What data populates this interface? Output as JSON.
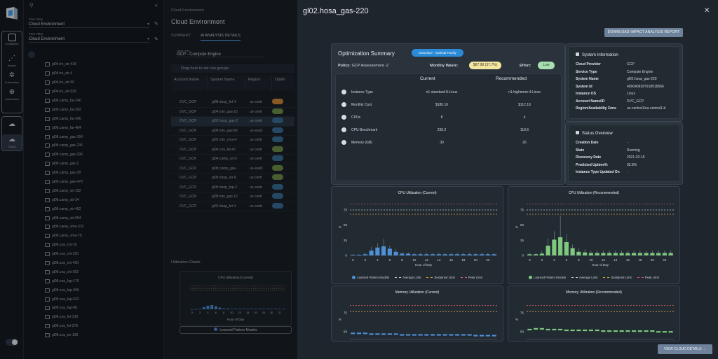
{
  "rail": {
    "items": [
      {
        "label": "Containers",
        "icon": "containers-icon"
      },
      {
        "label": "Nodes",
        "icon": "nodes-icon"
      },
      {
        "label": "Automation",
        "icon": "automation-icon"
      },
      {
        "label": "Connection",
        "icon": "connection-icon"
      }
    ],
    "cloud_label": "Cloud"
  },
  "tree": {
    "tree_view_label": "Tree View",
    "tree_view_value": "Cloud Environment",
    "tree_filter_label": "Tree Filter",
    "tree_filter_value": "Cloud Environment",
    "items": [
      "gl04.trc_str-418",
      "gl04.trc_str-4",
      "gl04.trc_str-50",
      "gl04.trc_str-536",
      "gl08.camp_far-240",
      "gl08.camp_far-202",
      "gl08.camp_far-396",
      "gl08.camp_far-404",
      "gl08.camp_gas-164",
      "gl08.camp_gas-236",
      "gl08.camp_gas-296",
      "gl08.camp_gas-2",
      "gl08.camp_gas-38",
      "gl08.camp_gas-470",
      "gl08.camp_str-152",
      "gl08.camp_str-34",
      "gl08.camp_str-452",
      "gl08.camp_str-594",
      "gl08.camp_vma-310",
      "gl08.camp_vma-70",
      "gl08.coa_chi-18",
      "gl08.coa_chi-230",
      "gl08.coa_chi-420",
      "gl08.coa_chi-562",
      "gl08.coa_fap-170",
      "gl08.coa_fap-456",
      "gl08.coa_fap-532",
      "gl08.coa_fap-98",
      "gl08.coa_fel-138",
      "gl08.coa_fel-378",
      "gl08.coa_str-108"
    ]
  },
  "main": {
    "breadcrumb": "Cloud Environment",
    "title": "Cloud Environment",
    "tabs": [
      "SUMMARY",
      "AI ANALYSIS DETAILS"
    ],
    "table_view_label": "Table View",
    "table_view_value": "GCP - Compute Engine",
    "drag_hint": "Drag here to set row groups",
    "columns": [
      "Account Name",
      "System Name",
      "Region",
      "Optim"
    ],
    "rows": [
      {
        "account": "DVC_GCP",
        "system": "gl08.doop_fel-4",
        "region": "us-centr",
        "pill": "#d08a3a"
      },
      {
        "account": "DVC_GCP",
        "system": "gl04.min_gas-15",
        "region": "us-centr",
        "pill": "#6f8f4a"
      },
      {
        "account": "DVC_GCP",
        "system": "gl02.hosa_gas-2",
        "region": "us-centr",
        "pill": "#3a6f9a"
      },
      {
        "account": "DVC_GCP",
        "system": "gl08.min_gas-66",
        "region": "us-east1",
        "pill": "#3a6f9a"
      },
      {
        "account": "DVC_GCP",
        "system": "gl02.min_vma-4",
        "region": "us-centr",
        "pill": "#3a6f9a"
      },
      {
        "account": "DVC_GCP",
        "system": "gl04.coa_fel-47",
        "region": "us-centr",
        "pill": "#6f8f4a"
      },
      {
        "account": "DVC_GCP",
        "system": "gl04.camp_str-5",
        "region": "us-centr",
        "pill": "#3a6f9a"
      },
      {
        "account": "DVC_GCP",
        "system": "gl08.camp_gas-",
        "region": "us-east1",
        "pill": "#6f8f4a"
      },
      {
        "account": "DVC_GCP",
        "system": "gl08.doop_str-8",
        "region": "us-centr",
        "pill": "#6f8f4a"
      },
      {
        "account": "DVC_GCP",
        "system": "gl08.doop_fap-2",
        "region": "us-centr",
        "pill": "#3a6f9a"
      },
      {
        "account": "DVC_GCP",
        "system": "gl08.min_gas-12",
        "region": "us-centr",
        "pill": "#3a6f9a"
      },
      {
        "account": "DVC_GCP",
        "system": "gl02.doop_fel-4",
        "region": "us-centr",
        "pill": "#3a6f9a"
      }
    ],
    "util_header": "Utilization Charts",
    "mini_chart_title": "CPU Utilization (Current)",
    "mini_chart_xlabel": "Hour of Day",
    "mini_button": "Learned Pattern Models"
  },
  "drawer": {
    "title": "gl02.hosa_gas-220",
    "report_button": "DOWNLOAD IMPACT ANALYSIS REPORT",
    "opt": {
      "title": "Optimization Summary",
      "badge": "Downsize - Optimal Family",
      "policy_label": "Policy:",
      "policy_value": "GCP Assessement -2",
      "waste_label": "Monthly Waste:",
      "waste_value": "$67.98 (37.7%)",
      "effort_label": "Effort:",
      "effort_value": "Low",
      "current": "Current",
      "recommended": "Recommended",
      "rows": [
        {
          "label": "Instance Type",
          "current": "n1-standard-8-Linux",
          "recommended": "n1-highmem-4-Linux"
        },
        {
          "label": "Monthly Cost",
          "current": "$180.16",
          "recommended": "$112.18"
        },
        {
          "label": "CPUs",
          "current": "8",
          "recommended": "4"
        },
        {
          "label": "CPU Benchmark",
          "current": "239.2",
          "recommended": "119.6"
        },
        {
          "label": "Memory (GB)",
          "current": "30",
          "recommended": "26"
        }
      ]
    },
    "sysinfo": {
      "title": "System Information",
      "rows": [
        {
          "k": "Cloud Provider",
          "v": "GCP"
        },
        {
          "k": "Service Type",
          "v": "Compute Engine"
        },
        {
          "k": "System Name",
          "v": "gl02.hosa_gas-220"
        },
        {
          "k": "System Id",
          "v": "4090409287918918566"
        },
        {
          "k": "Instance OS",
          "v": "Linux"
        },
        {
          "k": "Account Name/ID",
          "v": "DVC_GCP"
        },
        {
          "k": "Region/Availability Zone",
          "v": "us-central1/us-central1-b"
        }
      ]
    },
    "status": {
      "title": "Status Overview",
      "rows": [
        {
          "k": "Creation Date",
          "v": "-"
        },
        {
          "k": "State",
          "v": "Running"
        },
        {
          "k": "Discovery Date",
          "v": "2021-02-15"
        },
        {
          "k": "Predicted Uptime%",
          "v": "92.8%"
        },
        {
          "k": "Instance Type Updated On",
          "v": "-"
        }
      ]
    },
    "view_button": "VIEW CLOUD DETAILS"
  },
  "chart_data": [
    {
      "type": "bar",
      "title": "CPU Utilization (Current)",
      "xlabel": "Hour of Day",
      "ylabel": "%",
      "ylim": [
        0,
        90
      ],
      "yticks": [
        0,
        25,
        50,
        75
      ],
      "xticks": [
        0,
        2,
        4,
        6,
        8,
        10,
        12,
        14,
        16,
        18,
        20,
        22
      ],
      "color": "#4f8fd6",
      "values": [
        1,
        1,
        2,
        8,
        13,
        15,
        11,
        6,
        3,
        3,
        2,
        2,
        2,
        2,
        2,
        2,
        2,
        2,
        2,
        2,
        2,
        2,
        2,
        2
      ],
      "whisker_high": [
        2,
        2,
        4,
        14,
        20,
        27,
        16,
        10,
        6,
        5,
        4,
        4,
        4,
        4,
        4,
        4,
        4,
        4,
        4,
        4,
        4,
        4,
        4,
        4
      ],
      "limits": {
        "average": 75,
        "sustained": 68,
        "peak": 85
      },
      "legend": [
        "Learned Pattern Models",
        "Average Limit",
        "Sustained Limit",
        "Peak Limit"
      ]
    },
    {
      "type": "bar",
      "title": "CPU Utilization (Recommended)",
      "xlabel": "Hour of Day",
      "ylabel": "%",
      "ylim": [
        0,
        90
      ],
      "yticks": [
        0,
        25,
        50,
        75
      ],
      "xticks": [
        0,
        2,
        4,
        6,
        8,
        10,
        12,
        14,
        16,
        18,
        20,
        22
      ],
      "color": "#7fc97f",
      "values": [
        2,
        2,
        3,
        16,
        26,
        30,
        22,
        12,
        6,
        5,
        4,
        4,
        4,
        4,
        4,
        4,
        4,
        4,
        4,
        4,
        4,
        4,
        4,
        4
      ],
      "whisker_high": [
        4,
        4,
        8,
        28,
        40,
        65,
        35,
        18,
        12,
        10,
        8,
        8,
        8,
        8,
        8,
        8,
        8,
        8,
        8,
        8,
        8,
        8,
        8,
        8
      ],
      "limits": {
        "average": 75,
        "sustained": 68,
        "peak": 85
      },
      "legend": [
        "Learned Pattern Models",
        "Average Limit",
        "Sustained Limit",
        "Peak Limit"
      ]
    },
    {
      "type": "bar",
      "title": "Memory Utilization (Current)",
      "ylabel": "%",
      "ylim": [
        40,
        90
      ],
      "yticks": [
        50,
        75
      ],
      "color": "#4f8fd6",
      "values": [
        49,
        49,
        49,
        48,
        48,
        48,
        48,
        48,
        47,
        47,
        47,
        47,
        47,
        47,
        47,
        47,
        47,
        47,
        47,
        47,
        46,
        46,
        46,
        46
      ],
      "limits": {
        "average": 77,
        "sustained": 77,
        "peak": 85
      }
    },
    {
      "type": "bar",
      "title": "Memory Utilization (Recommended)",
      "ylabel": "%",
      "ylim": [
        40,
        90
      ],
      "yticks": [
        50,
        75
      ],
      "color": "#7fc97f",
      "values": [
        54,
        55,
        55,
        54,
        54,
        54,
        53,
        53,
        53,
        53,
        53,
        53,
        52,
        52,
        52,
        52,
        52,
        52,
        52,
        52,
        52,
        51,
        51,
        51
      ],
      "limits": {
        "average": 77,
        "sustained": 77,
        "peak": 85
      }
    }
  ]
}
